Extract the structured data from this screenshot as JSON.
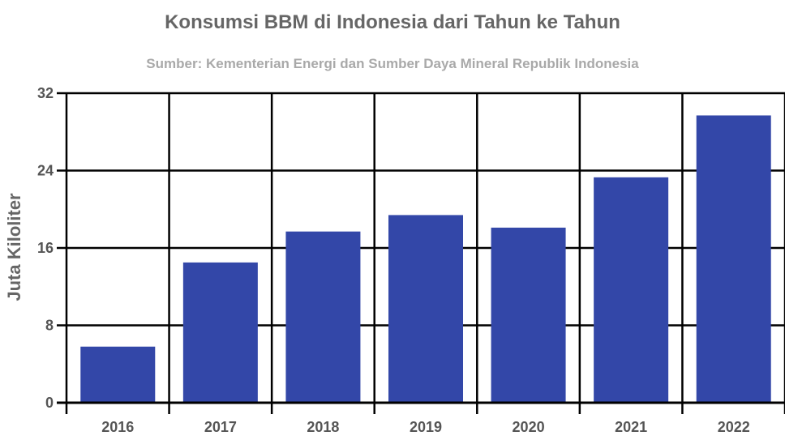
{
  "chart_data": {
    "type": "bar",
    "title": "Konsumsi BBM di Indonesia dari Tahun ke Tahun",
    "subtitle": "Sumber: Kementerian Energi dan Sumber Daya Mineral Republik Indonesia",
    "xlabel": "",
    "ylabel": "Juta Kiloliter",
    "categories": [
      "2016",
      "2017",
      "2018",
      "2019",
      "2020",
      "2021",
      "2022"
    ],
    "values": [
      5.8,
      14.5,
      17.7,
      19.4,
      18.1,
      23.3,
      29.7
    ],
    "ylim": [
      0,
      32
    ],
    "yticks": [
      0,
      8,
      16,
      24,
      32
    ],
    "bar_color": "#3347a8",
    "grid": true,
    "legend": "none"
  }
}
